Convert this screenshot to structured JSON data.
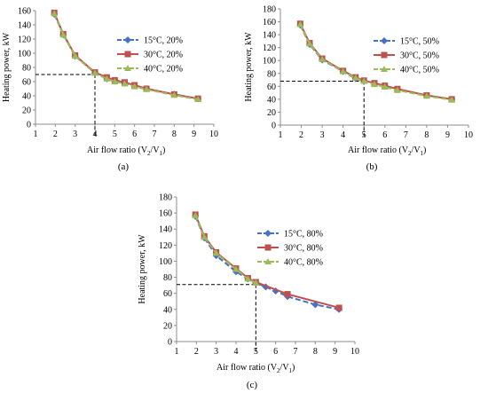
{
  "chart_data": [
    {
      "type": "line",
      "panel_label": "(a)",
      "xlabel": "Air flow ratio (V",
      "xlabel_sub1": "2",
      "xlabel_mid": "/V",
      "xlabel_sub2": "1",
      "xlabel_end": ")",
      "ylabel": "Heating power, kW",
      "xlim": [
        1,
        10
      ],
      "ylim": [
        0,
        160
      ],
      "xticks": [
        1,
        2,
        3,
        4,
        5,
        6,
        7,
        8,
        9,
        10
      ],
      "yticks": [
        0,
        20,
        40,
        60,
        80,
        100,
        120,
        140,
        160
      ],
      "grid": false,
      "legend_position": "right",
      "reference": {
        "x": 4,
        "y": 70
      },
      "series": [
        {
          "name": "15°C, 20%",
          "color": "#4472c4",
          "marker": "diamond",
          "dashed": true,
          "x": [
            1.95,
            2.4,
            3.0,
            4.0,
            4.6,
            5.0,
            5.5,
            6.0,
            6.6,
            8.0,
            9.2
          ],
          "y": [
            155,
            126,
            96,
            72,
            64,
            61,
            58,
            54,
            50,
            42,
            36
          ]
        },
        {
          "name": "30°C, 20%",
          "color": "#c0504d",
          "marker": "square",
          "dashed": false,
          "x": [
            1.95,
            2.4,
            3.0,
            4.0,
            4.6,
            5.0,
            5.5,
            6.0,
            6.6,
            8.0,
            9.2
          ],
          "y": [
            157,
            127,
            97,
            73,
            66,
            62,
            59,
            55,
            50,
            42,
            36
          ]
        },
        {
          "name": "40°C, 20%",
          "color": "#9bbb59",
          "marker": "triangle",
          "dashed": true,
          "x": [
            1.95,
            2.4,
            3.0,
            4.0,
            4.6,
            5.0,
            5.5,
            6.0,
            6.6,
            8.0,
            9.2
          ],
          "y": [
            156,
            126,
            96,
            72,
            64,
            60,
            57,
            53,
            49,
            41,
            35
          ]
        }
      ]
    },
    {
      "type": "line",
      "panel_label": "(b)",
      "xlabel": "Air flow ratio (V",
      "xlabel_sub1": "2",
      "xlabel_mid": "/V",
      "xlabel_sub2": "1",
      "xlabel_end": ")",
      "ylabel": "Heating power, kW",
      "xlim": [
        1,
        10
      ],
      "ylim": [
        0,
        180
      ],
      "xticks": [
        1,
        2,
        3,
        4,
        5,
        6,
        7,
        8,
        9,
        10
      ],
      "yticks": [
        0,
        20,
        40,
        60,
        80,
        100,
        120,
        140,
        160,
        180
      ],
      "grid": false,
      "legend_position": "right",
      "reference": {
        "x": 5,
        "y": 68
      },
      "series": [
        {
          "name": "15°C, 50%",
          "color": "#4472c4",
          "marker": "diamond",
          "dashed": true,
          "x": [
            1.95,
            2.4,
            3.0,
            4.0,
            4.6,
            5.0,
            5.5,
            6.0,
            6.6,
            8.0,
            9.2
          ],
          "y": [
            155,
            125,
            101,
            83,
            72,
            68,
            64,
            60,
            55,
            46,
            40
          ]
        },
        {
          "name": "30°C, 50%",
          "color": "#c0504d",
          "marker": "square",
          "dashed": false,
          "x": [
            1.95,
            2.4,
            3.0,
            4.0,
            4.6,
            5.0,
            5.5,
            6.0,
            6.6,
            8.0,
            9.2
          ],
          "y": [
            157,
            127,
            103,
            84,
            74,
            69,
            65,
            61,
            56,
            46,
            40
          ]
        },
        {
          "name": "40°C, 50%",
          "color": "#9bbb59",
          "marker": "triangle",
          "dashed": true,
          "x": [
            1.95,
            2.4,
            3.0,
            4.0,
            4.6,
            5.0,
            5.5,
            6.0,
            6.6,
            8.0,
            9.2
          ],
          "y": [
            156,
            126,
            102,
            83,
            73,
            68,
            63,
            59,
            54,
            45,
            39
          ]
        }
      ]
    },
    {
      "type": "line",
      "panel_label": "(c)",
      "xlabel": "Air flow ratio (V",
      "xlabel_sub1": "2",
      "xlabel_mid": "/V",
      "xlabel_sub2": "1",
      "xlabel_end": ")",
      "ylabel": "Heating power, kW",
      "xlim": [
        1,
        10
      ],
      "ylim": [
        0,
        180
      ],
      "xticks": [
        1,
        2,
        3,
        4,
        5,
        6,
        7,
        8,
        9,
        10
      ],
      "yticks": [
        0,
        20,
        40,
        60,
        80,
        100,
        120,
        140,
        160,
        180
      ],
      "grid": false,
      "legend_position": "right",
      "reference": {
        "x": 5,
        "y": 71
      },
      "series": [
        {
          "name": "15°C, 80%",
          "color": "#4472c4",
          "marker": "diamond",
          "dashed": true,
          "x": [
            1.95,
            2.4,
            3.0,
            4.0,
            4.6,
            5.0,
            5.5,
            6.0,
            6.6,
            8.0,
            9.2
          ],
          "y": [
            156,
            129,
            107,
            87,
            78,
            73,
            68,
            63,
            56,
            46,
            40
          ]
        },
        {
          "name": "30°C, 80%",
          "color": "#c0504d",
          "marker": "square",
          "dashed": false,
          "x": [
            1.95,
            2.4,
            3.0,
            4.0,
            4.6,
            5.0,
            6.6,
            9.2
          ],
          "y": [
            158,
            131,
            111,
            91,
            79,
            74,
            59,
            42
          ]
        },
        {
          "name": "40°C, 80%",
          "color": "#9bbb59",
          "marker": "triangle",
          "dashed": true,
          "x": [
            1.95,
            2.4,
            3.0,
            4.0,
            4.6,
            5.0
          ],
          "y": [
            157,
            130,
            110,
            90,
            78,
            73
          ]
        }
      ]
    }
  ]
}
